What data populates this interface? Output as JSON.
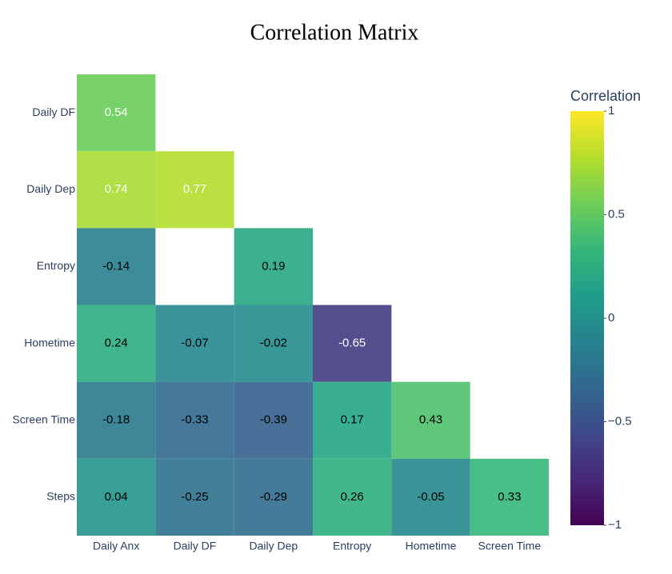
{
  "chart_data": {
    "type": "heatmap",
    "title": "Correlation Matrix",
    "x": [
      "Daily Anx",
      "Daily DF",
      "Daily Dep",
      "Entropy",
      "Hometime",
      "Screen Time"
    ],
    "y": [
      "Daily DF",
      "Daily Dep",
      "Entropy",
      "Hometime",
      "Screen Time",
      "Steps"
    ],
    "z": [
      [
        0.54,
        null,
        null,
        null,
        null,
        null
      ],
      [
        0.74,
        0.77,
        null,
        null,
        null,
        null
      ],
      [
        -0.14,
        null,
        0.19,
        null,
        null,
        null
      ],
      [
        0.24,
        -0.07,
        -0.02,
        -0.65,
        null,
        null
      ],
      [
        -0.18,
        -0.33,
        -0.39,
        0.17,
        0.43,
        null
      ],
      [
        0.04,
        -0.25,
        -0.29,
        0.26,
        -0.05,
        0.33
      ]
    ],
    "colorscale": "viridis",
    "colorbar_title": "Correlation",
    "zlim": [
      -1,
      1
    ],
    "zticks": [
      1,
      0.5,
      0,
      {
        "value": -0.5,
        "label": "−0.5"
      },
      {
        "value": -1,
        "label": "−1"
      }
    ]
  }
}
